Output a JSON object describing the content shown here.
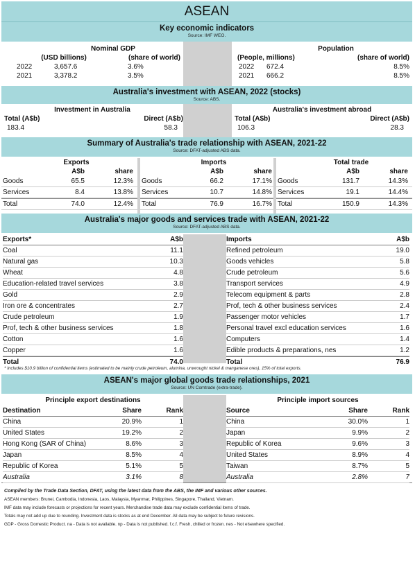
{
  "title": "ASEAN",
  "key": {
    "title": "Key economic indicators",
    "source": "Source: IMF WEO.",
    "gdp": {
      "label": "Nominal GDP",
      "col1": "(USD billions)",
      "col2": "(share of world)",
      "rows": [
        {
          "year": "2022",
          "value": "3,657.6",
          "share": "3.6%"
        },
        {
          "year": "2021",
          "value": "3,378.2",
          "share": "3.5%"
        }
      ]
    },
    "pop": {
      "label": "Population",
      "col1": "(People, millions)",
      "col2": "(share of world)",
      "rows": [
        {
          "year": "2022",
          "value": "672.4",
          "share": "8.5%"
        },
        {
          "year": "2021",
          "value": "666.2",
          "share": "8.5%"
        }
      ]
    }
  },
  "investment": {
    "title": "Australia's investment with ASEAN, 2022 (stocks)",
    "source": "Source: ABS.",
    "in": {
      "label": "Investment in Australia",
      "total_h": "Total (A$b)",
      "direct_h": "Direct (A$b)",
      "total": "183.4",
      "direct": "58.3"
    },
    "out": {
      "label": "Australia's investment abroad",
      "total_h": "Total (A$b)",
      "direct_h": "Direct (A$b)",
      "total": "106.3",
      "direct": "28.3"
    }
  },
  "summary": {
    "title": "Summary of Australia's trade relationship with ASEAN, 2021-22",
    "source": "Source: DFAT-adjusted ABS data.",
    "groups": [
      {
        "label": "Exports",
        "h1": "A$b",
        "h2": "share",
        "rows": [
          {
            "n": "Goods",
            "v": "65.5",
            "s": "12.3%"
          },
          {
            "n": "Services",
            "v": "8.4",
            "s": "13.8%"
          },
          {
            "n": "Total",
            "v": "74.0",
            "s": "12.4%"
          }
        ]
      },
      {
        "label": "Imports",
        "h1": "A$b",
        "h2": "share",
        "rows": [
          {
            "n": "Goods",
            "v": "66.2",
            "s": "17.1%"
          },
          {
            "n": "Services",
            "v": "10.7",
            "s": "14.8%"
          },
          {
            "n": "Total",
            "v": "76.9",
            "s": "16.7%"
          }
        ]
      },
      {
        "label": "Total trade",
        "h1": "A$b",
        "h2": "share",
        "rows": [
          {
            "n": "Goods",
            "v": "131.7",
            "s": "14.3%"
          },
          {
            "n": "Services",
            "v": "19.1",
            "s": "14.4%"
          },
          {
            "n": "Total",
            "v": "150.9",
            "s": "14.3%"
          }
        ]
      }
    ]
  },
  "major": {
    "title": "Australia's major goods and services trade with ASEAN, 2021-22",
    "source": "Source: DFAT-adjusted ABS data.",
    "exports": {
      "head": "Exports*",
      "unit": "A$b",
      "rows": [
        {
          "n": "Coal",
          "v": "11.1"
        },
        {
          "n": "Natural gas",
          "v": "10.3"
        },
        {
          "n": "Wheat",
          "v": "4.8"
        },
        {
          "n": "Education-related travel services",
          "v": "3.8"
        },
        {
          "n": "Gold",
          "v": "2.9"
        },
        {
          "n": "Iron ore & concentrates",
          "v": "2.7"
        },
        {
          "n": "Crude petroleum",
          "v": "1.9"
        },
        {
          "n": "Prof, tech & other business services",
          "v": "1.8"
        },
        {
          "n": "Cotton",
          "v": "1.6"
        },
        {
          "n": "Copper",
          "v": "1.6"
        }
      ],
      "total_label": "Total",
      "total": "74.0"
    },
    "imports": {
      "head": "Imports",
      "unit": "A$b",
      "rows": [
        {
          "n": "Refined petroleum",
          "v": "19.0"
        },
        {
          "n": "Goods vehicles",
          "v": "5.8"
        },
        {
          "n": "Crude petroleum",
          "v": "5.6"
        },
        {
          "n": "Transport services",
          "v": "4.9"
        },
        {
          "n": "Telecom equipment & parts",
          "v": "2.8"
        },
        {
          "n": "Prof, tech & other business services",
          "v": "2.4"
        },
        {
          "n": "Passenger motor vehicles",
          "v": "1.7"
        },
        {
          "n": "Personal travel excl education services",
          "v": "1.6"
        },
        {
          "n": "Computers",
          "v": "1.4"
        },
        {
          "n": "Edible products & preparations, nes",
          "v": "1.2"
        }
      ],
      "total_label": "Total",
      "total": "76.9"
    },
    "footnote": "* Includes $10.9 billion of confidential items (estimated to be mainly crude petroleum, alumina, unwrought nickel & manganese ores), 15% of total exports."
  },
  "global": {
    "title": "ASEAN's major global goods trade relationships, 2021",
    "source": "Source: UN Comtrade (extra-trade).",
    "exports": {
      "label": "Principle export destinations",
      "h1": "Destination",
      "h2": "Share",
      "h3": "Rank",
      "rows": [
        {
          "n": "China",
          "s": "20.9%",
          "r": "1"
        },
        {
          "n": "United States",
          "s": "19.2%",
          "r": "2"
        },
        {
          "n": "Hong Kong (SAR of China)",
          "s": "8.6%",
          "r": "3"
        },
        {
          "n": "Japan",
          "s": "8.5%",
          "r": "4"
        },
        {
          "n": "Republic of Korea",
          "s": "5.1%",
          "r": "5"
        },
        {
          "n": "Australia",
          "s": "3.1%",
          "r": "8"
        }
      ]
    },
    "imports": {
      "label": "Principle import sources",
      "h1": "Source",
      "h2": "Share",
      "h3": "Rank",
      "rows": [
        {
          "n": "China",
          "s": "30.0%",
          "r": "1"
        },
        {
          "n": "Japan",
          "s": "9.9%",
          "r": "2"
        },
        {
          "n": "Republic of Korea",
          "s": "9.6%",
          "r": "3"
        },
        {
          "n": "United States",
          "s": "8.9%",
          "r": "4"
        },
        {
          "n": "Taiwan",
          "s": "8.7%",
          "r": "5"
        },
        {
          "n": "Australia",
          "s": "2.8%",
          "r": "7"
        }
      ]
    }
  },
  "notes": {
    "compiled": "Compiled by the Trade Data Section, DFAT, using the latest data from the ABS, the IMF and various other sources.",
    "members": "ASEAN members: Brunei, Cambodia, Indonesia, Laos, Malaysia, Myanmar, Philippines, Singapore, Thailand, Vietnam.",
    "imf": "IMF data may include forecasts or projections for recent years.  Merchandise trade data may exclude confidential items of trade.",
    "totals": "Totals may not add up due to rounding.  Investment data is stocks as at end December.  All data may be subject to future revisions.",
    "abbr": "GDP - Gross Domestic Product.    na - Data is not available.    np - Data is not published.    f.c.f. Fresh, chilled or frozen.    nes - Not elsewhere specified."
  }
}
